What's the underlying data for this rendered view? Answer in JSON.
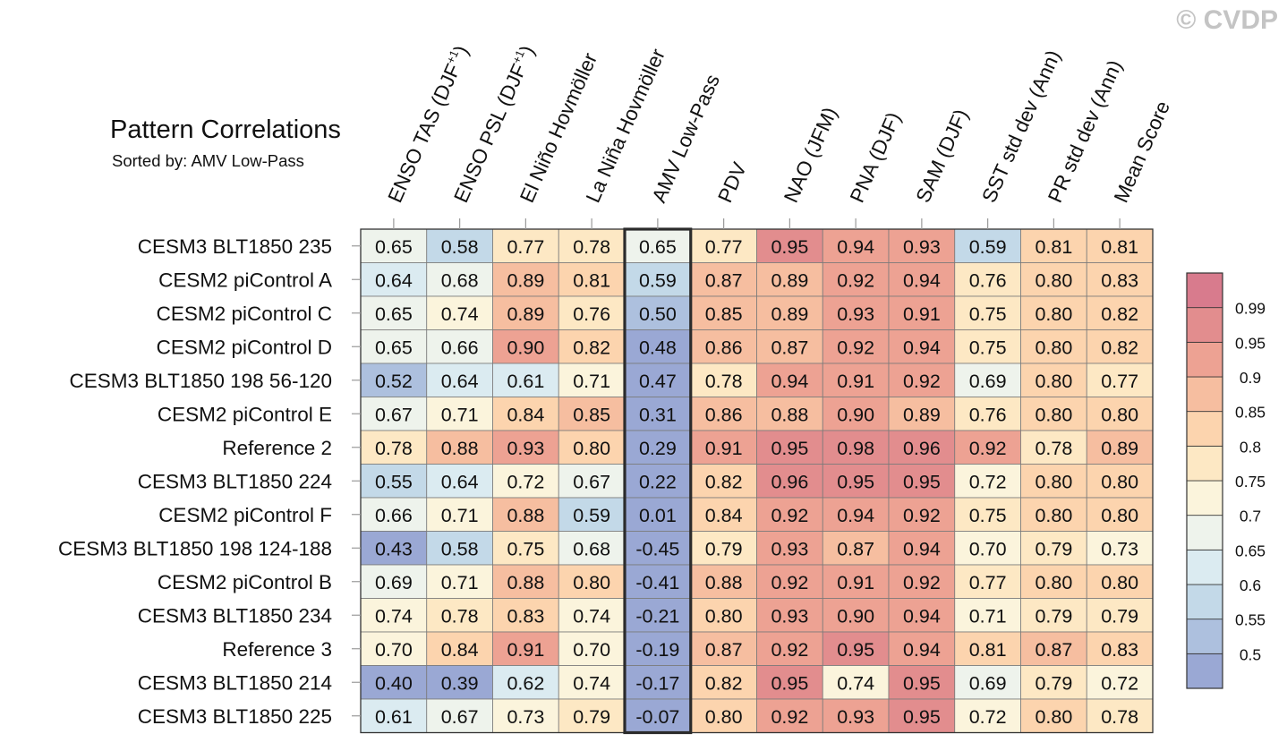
{
  "watermark": "© CVDP",
  "chart_data": {
    "type": "heatmap",
    "title": "Pattern Correlations",
    "subtitle": "Sorted by: AMV Low-Pass",
    "highlighted_column": "AMV Low-Pass",
    "columns": [
      {
        "label": "ENSO TAS (DJF",
        "sup": "+1",
        "suffix": ")"
      },
      {
        "label": "ENSO PSL (DJF",
        "sup": "+1",
        "suffix": ")"
      },
      {
        "label": "El Niño Hovmöller",
        "sup": "",
        "suffix": ""
      },
      {
        "label": "La Niña Hovmöller",
        "sup": "",
        "suffix": ""
      },
      {
        "label": "AMV Low-Pass",
        "sup": "",
        "suffix": ""
      },
      {
        "label": "PDV",
        "sup": "",
        "suffix": ""
      },
      {
        "label": "NAO (JFM)",
        "sup": "",
        "suffix": ""
      },
      {
        "label": "PNA (DJF)",
        "sup": "",
        "suffix": ""
      },
      {
        "label": "SAM (DJF)",
        "sup": "",
        "suffix": ""
      },
      {
        "label": "SST std dev (Ann)",
        "sup": "",
        "suffix": ""
      },
      {
        "label": "PR std dev (Ann)",
        "sup": "",
        "suffix": ""
      },
      {
        "label": "Mean Score",
        "sup": "",
        "suffix": ""
      }
    ],
    "rows": [
      {
        "name": "CESM3 BLT1850 235",
        "values": [
          "0.65",
          "0.58",
          "0.77",
          "0.78",
          "0.65",
          "0.77",
          "0.95",
          "0.94",
          "0.93",
          "0.59",
          "0.81",
          "0.81"
        ]
      },
      {
        "name": "CESM2 piControl A",
        "values": [
          "0.64",
          "0.68",
          "0.89",
          "0.81",
          "0.59",
          "0.87",
          "0.89",
          "0.92",
          "0.94",
          "0.76",
          "0.80",
          "0.83"
        ]
      },
      {
        "name": "CESM2 piControl C",
        "values": [
          "0.65",
          "0.74",
          "0.89",
          "0.76",
          "0.50",
          "0.85",
          "0.89",
          "0.93",
          "0.91",
          "0.75",
          "0.80",
          "0.82"
        ]
      },
      {
        "name": "CESM2 piControl D",
        "values": [
          "0.65",
          "0.66",
          "0.90",
          "0.82",
          "0.48",
          "0.86",
          "0.87",
          "0.92",
          "0.94",
          "0.75",
          "0.80",
          "0.82"
        ]
      },
      {
        "name": "CESM3 BLT1850 198 56-120",
        "values": [
          "0.52",
          "0.64",
          "0.61",
          "0.71",
          "0.47",
          "0.78",
          "0.94",
          "0.91",
          "0.92",
          "0.69",
          "0.80",
          "0.77"
        ]
      },
      {
        "name": "CESM2 piControl E",
        "values": [
          "0.67",
          "0.71",
          "0.84",
          "0.85",
          "0.31",
          "0.86",
          "0.88",
          "0.90",
          "0.89",
          "0.76",
          "0.80",
          "0.80"
        ]
      },
      {
        "name": "Reference 2",
        "values": [
          "0.78",
          "0.88",
          "0.93",
          "0.80",
          "0.29",
          "0.91",
          "0.95",
          "0.98",
          "0.96",
          "0.92",
          "0.78",
          "0.89"
        ]
      },
      {
        "name": "CESM3 BLT1850 224",
        "values": [
          "0.55",
          "0.64",
          "0.72",
          "0.67",
          "0.22",
          "0.82",
          "0.96",
          "0.95",
          "0.95",
          "0.72",
          "0.80",
          "0.80"
        ]
      },
      {
        "name": "CESM2 piControl F",
        "values": [
          "0.66",
          "0.71",
          "0.88",
          "0.59",
          "0.01",
          "0.84",
          "0.92",
          "0.94",
          "0.92",
          "0.75",
          "0.80",
          "0.80"
        ]
      },
      {
        "name": "CESM3 BLT1850 198 124-188",
        "values": [
          "0.43",
          "0.58",
          "0.75",
          "0.68",
          "-0.45",
          "0.79",
          "0.93",
          "0.87",
          "0.94",
          "0.70",
          "0.79",
          "0.73"
        ]
      },
      {
        "name": "CESM2 piControl B",
        "values": [
          "0.69",
          "0.71",
          "0.88",
          "0.80",
          "-0.41",
          "0.88",
          "0.92",
          "0.91",
          "0.92",
          "0.77",
          "0.80",
          "0.80"
        ]
      },
      {
        "name": "CESM3 BLT1850 234",
        "values": [
          "0.74",
          "0.78",
          "0.83",
          "0.74",
          "-0.21",
          "0.80",
          "0.93",
          "0.90",
          "0.94",
          "0.71",
          "0.79",
          "0.79"
        ]
      },
      {
        "name": "Reference 3",
        "values": [
          "0.70",
          "0.84",
          "0.91",
          "0.70",
          "-0.19",
          "0.87",
          "0.92",
          "0.95",
          "0.94",
          "0.81",
          "0.87",
          "0.83"
        ]
      },
      {
        "name": "CESM3 BLT1850 214",
        "values": [
          "0.40",
          "0.39",
          "0.62",
          "0.74",
          "-0.17",
          "0.82",
          "0.95",
          "0.74",
          "0.95",
          "0.69",
          "0.79",
          "0.72"
        ]
      },
      {
        "name": "CESM3 BLT1850 225",
        "values": [
          "0.61",
          "0.67",
          "0.73",
          "0.79",
          "-0.07",
          "0.80",
          "0.92",
          "0.93",
          "0.95",
          "0.72",
          "0.80",
          "0.78"
        ]
      }
    ],
    "colorbar": {
      "boundaries": [
        "0.5",
        "0.55",
        "0.6",
        "0.65",
        "0.7",
        "0.75",
        "0.8",
        "0.85",
        "0.9",
        "0.95",
        "0.99"
      ],
      "colors": [
        "#9aa8d4",
        "#adc0de",
        "#c3d9e8",
        "#dbebf1",
        "#eef3ec",
        "#fbf4dc",
        "#fde8c4",
        "#fcd4ae",
        "#f6bea0",
        "#eda293",
        "#e28d8e",
        "#d87b8d"
      ]
    },
    "legend": "right"
  }
}
